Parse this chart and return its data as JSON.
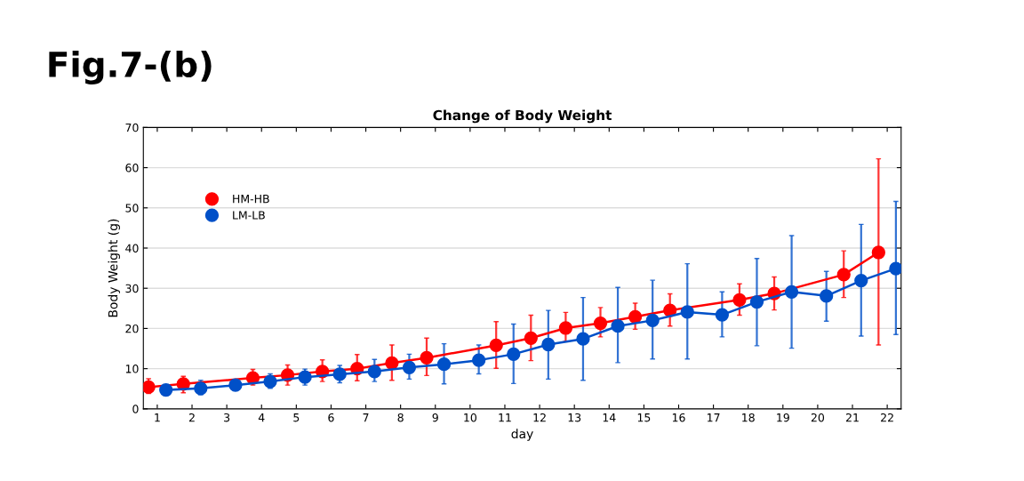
{
  "chart_data": {
    "type": "line",
    "title": "Change of Body Weight",
    "xlabel": "day",
    "ylabel": "Body Weight (g)",
    "annotations": [
      "Fig.7-(b)"
    ],
    "xlim": [
      0.6,
      22.4
    ],
    "xticks": [
      1,
      2,
      3,
      4,
      5,
      6,
      7,
      8,
      9,
      10,
      11,
      12,
      13,
      14,
      15,
      16,
      17,
      18,
      19,
      20,
      21,
      22
    ],
    "ylim": [
      0,
      70
    ],
    "yticks": [
      0,
      10,
      20,
      30,
      40,
      50,
      60,
      70
    ],
    "grid": "y",
    "legend": "top left",
    "marker": "circle",
    "line_style": "solid",
    "series": [
      {
        "name": "HM-HB",
        "color": "#ff0000",
        "x": [
          0.75,
          1.75,
          3.75,
          4.75,
          5.75,
          6.75,
          7.75,
          8.75,
          10.75,
          11.75,
          12.75,
          13.75,
          14.75,
          15.75,
          17.75,
          18.75,
          20.75,
          21.75
        ],
        "values": [
          5.4,
          6.2,
          7.7,
          8.4,
          9.3,
          10.0,
          11.4,
          12.7,
          15.8,
          17.6,
          20.1,
          21.3,
          22.9,
          24.5,
          27.1,
          28.7,
          33.4,
          38.9
        ],
        "errors": [
          [
            3.8,
            7.5
          ],
          [
            4.0,
            8.1
          ],
          [
            5.9,
            9.8
          ],
          [
            5.9,
            10.9
          ],
          [
            6.8,
            12.2
          ],
          [
            7.0,
            13.5
          ],
          [
            7.1,
            15.9
          ],
          [
            8.3,
            17.6
          ],
          [
            10.1,
            21.7
          ],
          [
            12.0,
            23.3
          ],
          [
            16.8,
            24.0
          ],
          [
            17.9,
            25.2
          ],
          [
            19.8,
            26.3
          ],
          [
            20.6,
            28.6
          ],
          [
            23.3,
            31.1
          ],
          [
            24.6,
            32.8
          ],
          [
            27.7,
            39.3
          ],
          [
            15.9,
            62.2
          ]
        ]
      },
      {
        "name": "LM-LB",
        "color": "#0050c8",
        "x": [
          1.25,
          2.25,
          3.25,
          4.25,
          5.25,
          6.25,
          7.25,
          8.25,
          9.25,
          10.25,
          11.25,
          12.25,
          13.25,
          14.25,
          15.25,
          16.25,
          17.25,
          18.25,
          19.25,
          20.25,
          21.25,
          22.25
        ],
        "values": [
          4.7,
          5.1,
          5.9,
          6.8,
          7.9,
          8.6,
          9.3,
          10.3,
          11.1,
          12.1,
          13.6,
          16.0,
          17.4,
          20.6,
          22.0,
          24.1,
          23.4,
          26.6,
          29.1,
          28.1,
          31.9,
          34.9
        ],
        "errors": [
          [
            3.8,
            5.5
          ],
          [
            3.5,
            7.1
          ],
          null,
          [
            5.1,
            8.7
          ],
          [
            5.9,
            9.9
          ],
          [
            6.5,
            10.8
          ],
          [
            6.8,
            12.3
          ],
          [
            7.4,
            13.6
          ],
          [
            6.2,
            16.2
          ],
          [
            8.7,
            15.9
          ],
          [
            6.3,
            21.1
          ],
          [
            7.4,
            24.5
          ],
          [
            7.1,
            27.7
          ],
          [
            11.5,
            30.2
          ],
          [
            12.4,
            32.0
          ],
          [
            12.4,
            36.1
          ],
          [
            17.9,
            29.1
          ],
          [
            15.7,
            37.4
          ],
          [
            15.1,
            43.1
          ],
          [
            21.8,
            34.2
          ],
          [
            18.1,
            45.9
          ],
          [
            18.5,
            51.6
          ]
        ]
      }
    ]
  }
}
